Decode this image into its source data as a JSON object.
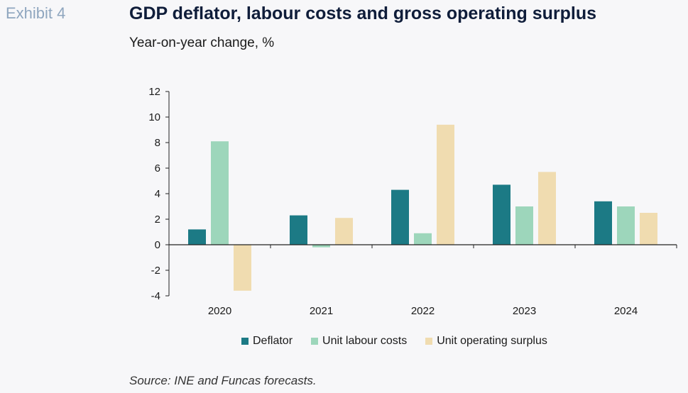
{
  "header": {
    "exhibit": "Exhibit 4",
    "title": "GDP deflator, labour costs and gross operating surplus",
    "subtitle": "Year-on-year change, %"
  },
  "footer": {
    "source": "Source: INE and Funcas forecasts."
  },
  "colors": {
    "deflator": "#1c7a85",
    "unit_labour_costs": "#9dd6bb",
    "unit_operating_surplus": "#f0dcb0"
  },
  "chart_data": {
    "type": "bar",
    "categories": [
      "2020",
      "2021",
      "2022",
      "2023",
      "2024"
    ],
    "series": [
      {
        "name": "Deflator",
        "values": [
          1.2,
          2.3,
          4.3,
          4.7,
          3.4
        ]
      },
      {
        "name": "Unit labour costs",
        "values": [
          8.1,
          -0.2,
          0.9,
          3.0,
          3.0
        ]
      },
      {
        "name": "Unit operating surplus",
        "values": [
          -3.6,
          2.1,
          9.4,
          5.7,
          2.5
        ]
      }
    ],
    "ylim": [
      -4,
      12
    ],
    "yticks": [
      "12",
      "10",
      "8",
      "6",
      "4",
      "2",
      "0",
      "-2",
      "-4"
    ],
    "legend_position": "bottom"
  }
}
